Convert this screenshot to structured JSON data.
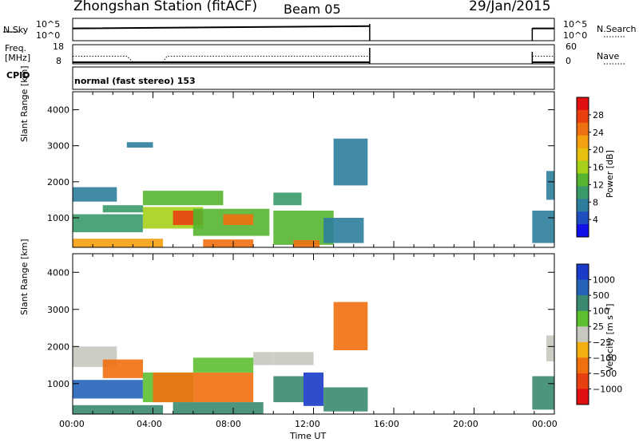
{
  "header": {
    "station": "Zhongshan Station (fitACF)",
    "beam": "Beam 05",
    "date": "29/Jan/2015"
  },
  "top_panels": {
    "nsky_label": "N.Sky",
    "nsky_ticks": [
      "10^5",
      "10^0"
    ],
    "nsearch_label": "N.Search",
    "nsearch_ticks": [
      "10^5",
      "10^0"
    ],
    "freq_label": "Freq.",
    "freq_unit": "[MHz]",
    "freq_ticks": [
      "18",
      "8"
    ],
    "nave_label": "Nave",
    "nave_ticks": [
      "60",
      "0"
    ],
    "cpid_label": "CPID",
    "cpid_text": "normal (fast stereo) 153"
  },
  "x_axis": {
    "label": "Time UT",
    "ticks": [
      "00:00",
      "04:00",
      "08:00",
      "12:00",
      "16:00",
      "20:00",
      "00:00"
    ],
    "range_hours": [
      0,
      24
    ],
    "data_gap_hours": [
      14.8,
      22.9
    ]
  },
  "chart_data": [
    {
      "type": "heatmap",
      "variable": "power",
      "ylabel": "Slant Range [km]",
      "ylim": [
        180,
        4500
      ],
      "yticks": [
        1000,
        2000,
        3000,
        4000
      ],
      "xlim": [
        0,
        24
      ],
      "colorbar": {
        "label": "Power [dB]",
        "range": [
          0,
          32
        ],
        "ticks": [
          "4",
          "8",
          "12",
          "16",
          "20",
          "24",
          "28"
        ],
        "colors": [
          "#1010e8",
          "#1f4fbf",
          "#2d7e9c",
          "#3a9a6a",
          "#55b530",
          "#a6d01a",
          "#e8c010",
          "#f4a010",
          "#ef7010",
          "#ea4010",
          "#e01010"
        ]
      },
      "regions": [
        {
          "t": [
            0.0,
            2.2
          ],
          "r": [
            1450,
            1850
          ],
          "value": 8
        },
        {
          "t": [
            0.0,
            3.5
          ],
          "r": [
            600,
            1100
          ],
          "value": 10
        },
        {
          "t": [
            0.0,
            4.5
          ],
          "r": [
            180,
            420
          ],
          "value": 22
        },
        {
          "t": [
            1.5,
            3.5
          ],
          "r": [
            1150,
            1350
          ],
          "value": 10
        },
        {
          "t": [
            3.5,
            6.5
          ],
          "r": [
            700,
            1300
          ],
          "value": 16
        },
        {
          "t": [
            3.5,
            7.5
          ],
          "r": [
            1350,
            1750
          ],
          "value": 12
        },
        {
          "t": [
            5.0,
            6.5
          ],
          "r": [
            800,
            1200
          ],
          "value": 27
        },
        {
          "t": [
            6.0,
            9.8
          ],
          "r": [
            500,
            1250
          ],
          "value": 14
        },
        {
          "t": [
            7.5,
            9.0
          ],
          "r": [
            800,
            1100
          ],
          "value": 24
        },
        {
          "t": [
            6.5,
            9.0
          ],
          "r": [
            180,
            400
          ],
          "value": 26
        },
        {
          "t": [
            10.0,
            11.4
          ],
          "r": [
            1350,
            1700
          ],
          "value": 10
        },
        {
          "t": [
            10.0,
            13.0
          ],
          "r": [
            250,
            1200
          ],
          "value": 12
        },
        {
          "t": [
            11.0,
            12.3
          ],
          "r": [
            180,
            380
          ],
          "value": 25
        },
        {
          "t": [
            12.5,
            14.5
          ],
          "r": [
            300,
            1000
          ],
          "value": 7
        },
        {
          "t": [
            13.0,
            14.7
          ],
          "r": [
            1900,
            3200
          ],
          "value": 6
        },
        {
          "t": [
            22.9,
            24.0
          ],
          "r": [
            300,
            1200
          ],
          "value": 8
        },
        {
          "t": [
            23.6,
            24.0
          ],
          "r": [
            1500,
            2300
          ],
          "value": 8
        },
        {
          "t": [
            2.7,
            4.0
          ],
          "r": [
            2950,
            3100
          ],
          "value": 7
        }
      ]
    },
    {
      "type": "heatmap",
      "variable": "velocity",
      "ylabel": "Slant Range [km]",
      "ylim": [
        180,
        4500
      ],
      "yticks": [
        1000,
        2000,
        3000,
        4000
      ],
      "xlim": [
        0,
        24
      ],
      "colorbar": {
        "label": "Velocity [m s⁻¹]",
        "ticks": [
          "1000",
          "500",
          "100",
          "25",
          "−25",
          "−100",
          "−500",
          "−1000"
        ],
        "colors": [
          "#1a3ac8",
          "#2563b8",
          "#3a8a70",
          "#5cbf30",
          "#c8c8c0",
          "#f4b010",
          "#f07010",
          "#e84010",
          "#e01010"
        ]
      },
      "regions": [
        {
          "t": [
            0.0,
            2.2
          ],
          "r": [
            1450,
            2000
          ],
          "category": 4
        },
        {
          "t": [
            0.0,
            4.5
          ],
          "r": [
            180,
            420
          ],
          "category": 2
        },
        {
          "t": [
            0.0,
            3.5
          ],
          "r": [
            600,
            1100
          ],
          "category": 1
        },
        {
          "t": [
            1.5,
            3.5
          ],
          "r": [
            1150,
            1650
          ],
          "category": 6
        },
        {
          "t": [
            3.5,
            6.0
          ],
          "r": [
            500,
            1300
          ],
          "category": 3
        },
        {
          "t": [
            4.0,
            9.0
          ],
          "r": [
            500,
            1300
          ],
          "category": 6
        },
        {
          "t": [
            6.0,
            9.0
          ],
          "r": [
            1300,
            1700
          ],
          "category": 3
        },
        {
          "t": [
            5.0,
            9.5
          ],
          "r": [
            180,
            500
          ],
          "category": 2
        },
        {
          "t": [
            9.0,
            10.0
          ],
          "r": [
            1500,
            1850
          ],
          "category": 4
        },
        {
          "t": [
            10.0,
            12.0
          ],
          "r": [
            1500,
            1850
          ],
          "category": 4
        },
        {
          "t": [
            10.0,
            11.5
          ],
          "r": [
            500,
            1200
          ],
          "category": 2
        },
        {
          "t": [
            11.5,
            12.5
          ],
          "r": [
            400,
            1300
          ],
          "category": 0
        },
        {
          "t": [
            12.5,
            14.7
          ],
          "r": [
            250,
            900
          ],
          "category": 2
        },
        {
          "t": [
            13.0,
            14.7
          ],
          "r": [
            1900,
            3200
          ],
          "category": 6
        },
        {
          "t": [
            22.9,
            24.0
          ],
          "r": [
            300,
            1200
          ],
          "category": 2
        },
        {
          "t": [
            23.6,
            24.0
          ],
          "r": [
            1600,
            2300
          ],
          "category": 4
        }
      ]
    }
  ],
  "summary_series": {
    "nsky": [
      {
        "t": 0.0,
        "v": 0.55
      },
      {
        "t": 14.8,
        "v": 0.65
      },
      {
        "t": 22.9,
        "v": 0.55
      },
      {
        "t": 24.0,
        "v": 0.55
      }
    ],
    "freq": [
      {
        "t": 0.0,
        "v": 12.0
      },
      {
        "t": 2.7,
        "v": 12.0
      },
      {
        "t": 3.0,
        "v": 9.0
      },
      {
        "t": 4.5,
        "v": 9.0
      },
      {
        "t": 4.7,
        "v": 12.0
      },
      {
        "t": 14.8,
        "v": 12.0
      },
      {
        "t": 22.9,
        "v": 12.0
      },
      {
        "t": 24.0,
        "v": 12.0
      }
    ]
  }
}
